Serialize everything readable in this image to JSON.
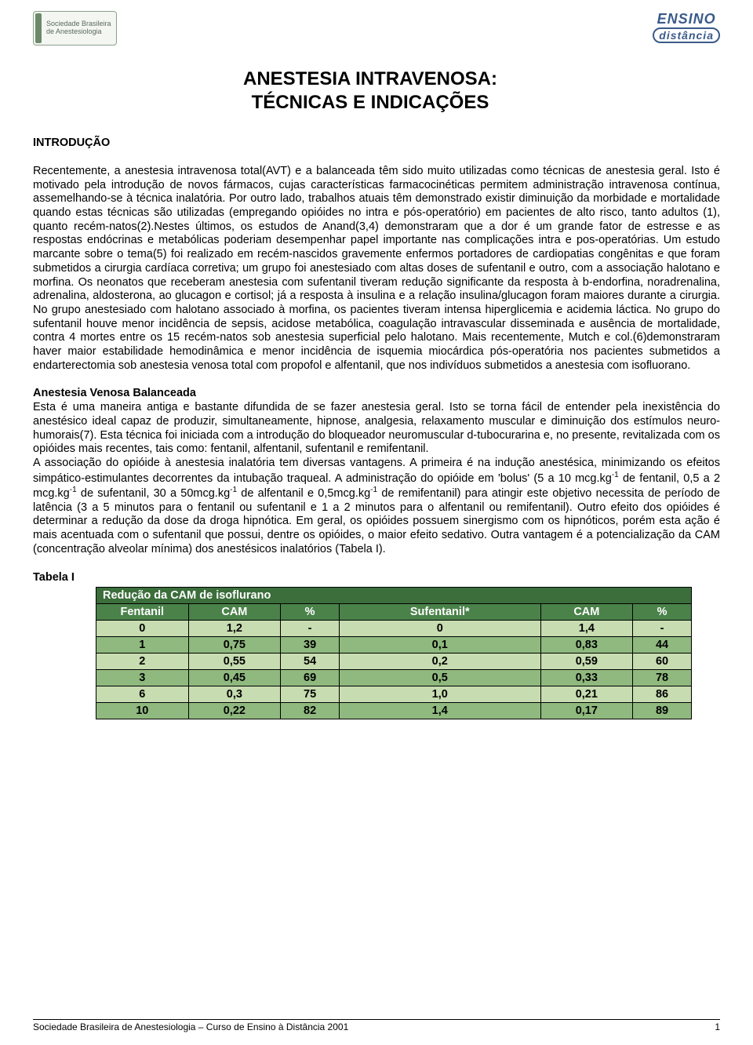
{
  "header": {
    "left_logo_line1": "Sociedade Brasileira",
    "left_logo_line2": "de Anestesiologia",
    "right_logo_top": "ENSINO",
    "right_logo_bottom": "distância"
  },
  "title_line1": "ANESTESIA INTRAVENOSA:",
  "title_line2": "TÉCNICAS E INDICAÇÕES",
  "intro_heading": "INTRODUÇÃO",
  "intro_body": "Recentemente, a anestesia intravenosa total(AVT) e a balanceada têm sido muito utilizadas como técnicas de anestesia geral. Isto é motivado pela introdução de novos fármacos, cujas características farmacocinéticas permitem administração intravenosa contínua, assemelhando-se à técnica inalatória. Por outro lado, trabalhos atuais têm demonstrado existir diminuição da morbidade e mortalidade quando estas técnicas são utilizadas (empregando opióides no intra e pós-operatório) em pacientes de alto risco, tanto adultos (1), quanto recém-natos(2).Nestes últimos, os estudos de Anand(3,4) demonstraram que a dor é um grande fator de estresse e as respostas endócrinas e metabólicas poderiam desempenhar papel importante nas complicações intra e pos-operatórias. Um estudo marcante sobre o tema(5) foi realizado em recém-nascidos gravemente enfermos portadores de cardiopatias congênitas e que foram submetidos a cirurgia cardíaca corretiva; um grupo foi anestesiado com altas doses de sufentanil e outro, com a associação halotano e morfina. Os neonatos que receberam anestesia com sufentanil tiveram redução significante da resposta à b-endorfina, noradrenalina, adrenalina, aldosterona, ao glucagon e cortisol; já a resposta à insulina e a relação insulina/glucagon foram maiores durante a cirurgia. No grupo anestesiado com halotano associado à morfina, os pacientes tiveram intensa hiperglicemia e acidemia láctica. No grupo do sufentanil houve menor incidência de sepsis, acidose metabólica, coagulação intravascular disseminada e ausência de mortalidade, contra 4 mortes entre os 15 recém-natos sob anestesia superficial pelo halotano. Mais recentemente, Mutch e col.(6)demonstraram haver maior estabilidade hemodinâmica e menor incidência de isquemia miocárdica pós-operatória nos pacientes submetidos a endarterectomia sob anestesia venosa total com propofol e alfentanil, que nos indivíduos submetidos a anestesia com isofluorano.",
  "section2_heading": "Anestesia Venosa Balanceada",
  "section2_body": "Esta é uma maneira antiga e bastante difundida de se fazer anestesia geral. Isto se torna fácil de entender pela inexistência do anestésico ideal capaz de produzir, simultaneamente, hipnose, analgesia, relaxamento muscular e diminuição dos estímulos neuro-humorais(7). Esta técnica foi iniciada com a introdução do bloqueador neuromuscular d-tubocurarina e, no presente, revitalizada com os opióides mais recentes, tais como: fentanil, alfentanil, sufentanil e remifentanil.\nA associação do opióide à anestesia inalatória tem diversas vantagens. A primeira é na indução anestésica, minimizando os efeitos simpático-estimulantes decorrentes da intubação traqueal. A administração do opióide em 'bolus' (5 a 10 mcg.kg⁻¹ de fentanil, 0,5 a 2 mcg.kg⁻¹ de sufentanil, 30 a 50mcg.kg⁻¹ de alfentanil e 0,5mcg.kg⁻¹ de remifentanil) para atingir este objetivo necessita de período de latência (3 a 5 minutos para o fentanil ou sufentanil e 1 a 2 minutos para o alfentanil ou remifentanil). Outro efeito dos opióides é determinar a redução da dose da droga hipnótica. Em geral, os opióides possuem sinergismo com os hipnóticos, porém esta ação é mais acentuada com o sufentanil que possui, dentre os opióides, o maior efeito sedativo. Outra vantagem é a potencialização da CAM (concentração alveolar mínima) dos anestésicos inalatórios (Tabela I).",
  "table_label": "Tabela I",
  "table": {
    "type": "table",
    "title": "Redução da CAM de isoflurano",
    "columns": [
      "Fentanil",
      "CAM",
      "%",
      "Sufentanil*",
      "CAM",
      "%"
    ],
    "rows": [
      [
        "0",
        "1,2",
        "-",
        "0",
        "1,4",
        "-"
      ],
      [
        "1",
        "0,75",
        "39",
        "0,1",
        "0,83",
        "44"
      ],
      [
        "2",
        "0,55",
        "54",
        "0,2",
        "0,59",
        "60"
      ],
      [
        "3",
        "0,45",
        "69",
        "0,5",
        "0,33",
        "78"
      ],
      [
        "6",
        "0,3",
        "75",
        "1,0",
        "0,21",
        "86"
      ],
      [
        "10",
        "0,22",
        "82",
        "1,4",
        "0,17",
        "89"
      ]
    ],
    "title_row_bg": "#3b6e3b",
    "header_row_bg": "#4a824a",
    "row_alt_bg_light": "#c7dcb0",
    "row_alt_bg_dark": "#8fb97e",
    "border_color": "#000000",
    "col_widths": [
      "110px",
      "110px",
      "70px",
      "240px",
      "110px",
      "70px"
    ]
  },
  "footer": {
    "text": "Sociedade Brasileira de Anestesiologia – Curso de Ensino à Distância 2001",
    "page": "1"
  }
}
